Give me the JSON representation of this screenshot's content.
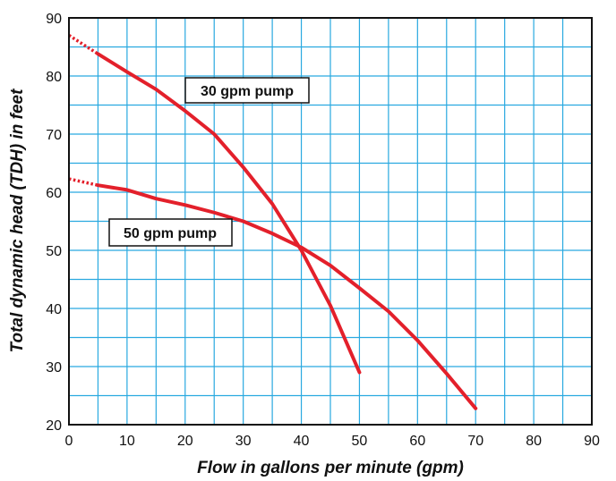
{
  "chart_data": {
    "type": "line",
    "title": "",
    "xlabel": "Flow in gallons per minute (gpm)",
    "ylabel": "Total dynamic head (TDH) in feet",
    "xlim": [
      0,
      90
    ],
    "ylim": [
      20,
      90
    ],
    "x_ticks": [
      "0",
      "10",
      "20",
      "30",
      "40",
      "50",
      "60",
      "70",
      "80",
      "90"
    ],
    "y_ticks": [
      "20",
      "30",
      "40",
      "50",
      "60",
      "70",
      "80",
      "90"
    ],
    "grid": true,
    "grid_minor_step": 5,
    "grid_color": "#29a9e0",
    "series_color": "#e3202b",
    "series": [
      {
        "name": "30 gpm pump",
        "extrapolated": [
          [
            0,
            87
          ],
          [
            5,
            83.8
          ]
        ],
        "points": [
          [
            5,
            83.8
          ],
          [
            10,
            80.7
          ],
          [
            15,
            77.7
          ],
          [
            20,
            74
          ],
          [
            25,
            70
          ],
          [
            30,
            64.3
          ],
          [
            35,
            58
          ],
          [
            40,
            50
          ],
          [
            45,
            40.5
          ],
          [
            50,
            29
          ]
        ]
      },
      {
        "name": "50 gpm pump",
        "extrapolated": [
          [
            0,
            62.3
          ],
          [
            5,
            61.2
          ]
        ],
        "points": [
          [
            5,
            61.2
          ],
          [
            10,
            60.4
          ],
          [
            15,
            58.9
          ],
          [
            20,
            57.8
          ],
          [
            25,
            56.5
          ],
          [
            30,
            55
          ],
          [
            35,
            52.9
          ],
          [
            40,
            50.5
          ],
          [
            45,
            47.4
          ],
          [
            50,
            43.5
          ],
          [
            55,
            39.5
          ],
          [
            60,
            34.5
          ],
          [
            65,
            28.8
          ],
          [
            70,
            22.8
          ]
        ]
      }
    ]
  }
}
